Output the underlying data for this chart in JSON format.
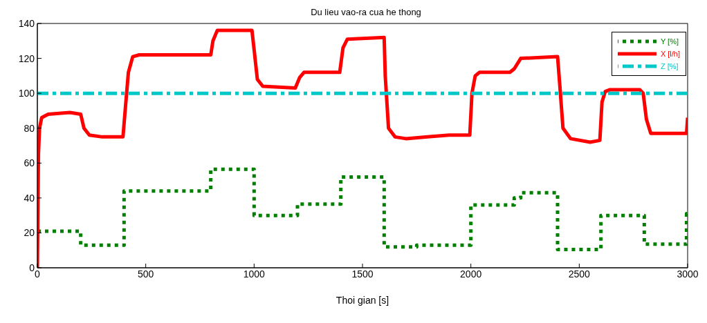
{
  "chart_data": {
    "type": "line",
    "title": "Du lieu vao-ra cua he thong",
    "xlabel": "Thoi gian [s]",
    "xlim": [
      0,
      3000
    ],
    "xticks": [
      0,
      500,
      1000,
      1500,
      2000,
      2500,
      3000
    ],
    "ylim": [
      0,
      140
    ],
    "yticks": [
      0,
      20,
      40,
      60,
      80,
      100,
      120,
      140
    ],
    "grid": false,
    "legend": "top right",
    "marker": "none",
    "series": [
      {
        "name": "Y [%]",
        "type": "step",
        "color": "#007f00",
        "line_style": "dotted",
        "x": [
          0,
          200,
          400,
          800,
          1000,
          1200,
          1400,
          1600,
          1750,
          2000,
          2200,
          2230,
          2400,
          2600,
          2800,
          2995,
          3000
        ],
        "values": [
          21,
          13,
          44,
          56.5,
          30,
          36.5,
          52,
          12,
          13,
          36,
          40,
          43,
          10.5,
          30,
          13.5,
          31,
          31
        ]
      },
      {
        "name": "X [l/h]",
        "color": "#ff0000",
        "line_style": "solid",
        "x": [
          0,
          5,
          10,
          20,
          50,
          150,
          200,
          215,
          240,
          300,
          395,
          405,
          420,
          440,
          470,
          800,
          810,
          830,
          990,
          1000,
          1015,
          1040,
          1190,
          1210,
          1230,
          1395,
          1410,
          1430,
          1600,
          1605,
          1620,
          1650,
          1700,
          1800,
          1900,
          1995,
          2005,
          2020,
          2040,
          2180,
          2200,
          2230,
          2400,
          2410,
          2425,
          2460,
          2550,
          2595,
          2605,
          2620,
          2640,
          2780,
          2795,
          2810,
          2830,
          2995,
          3000
        ],
        "values": [
          0,
          65,
          80,
          86,
          88,
          89,
          88,
          80,
          76,
          75,
          75,
          90,
          112,
          121,
          122,
          122,
          130,
          136,
          136,
          125,
          108,
          104,
          103,
          109,
          112,
          112,
          126,
          131,
          132,
          110,
          80,
          75,
          74,
          75,
          76,
          76,
          100,
          110,
          112,
          112,
          114,
          120,
          121,
          105,
          80,
          74,
          72,
          73,
          95,
          101,
          102,
          102,
          100,
          85,
          77,
          77,
          86
        ]
      },
      {
        "name": "Z [%]",
        "color": "#00c8c8",
        "line_style": "dashed",
        "x": [
          0,
          3000
        ],
        "values": [
          100,
          100
        ]
      }
    ]
  }
}
